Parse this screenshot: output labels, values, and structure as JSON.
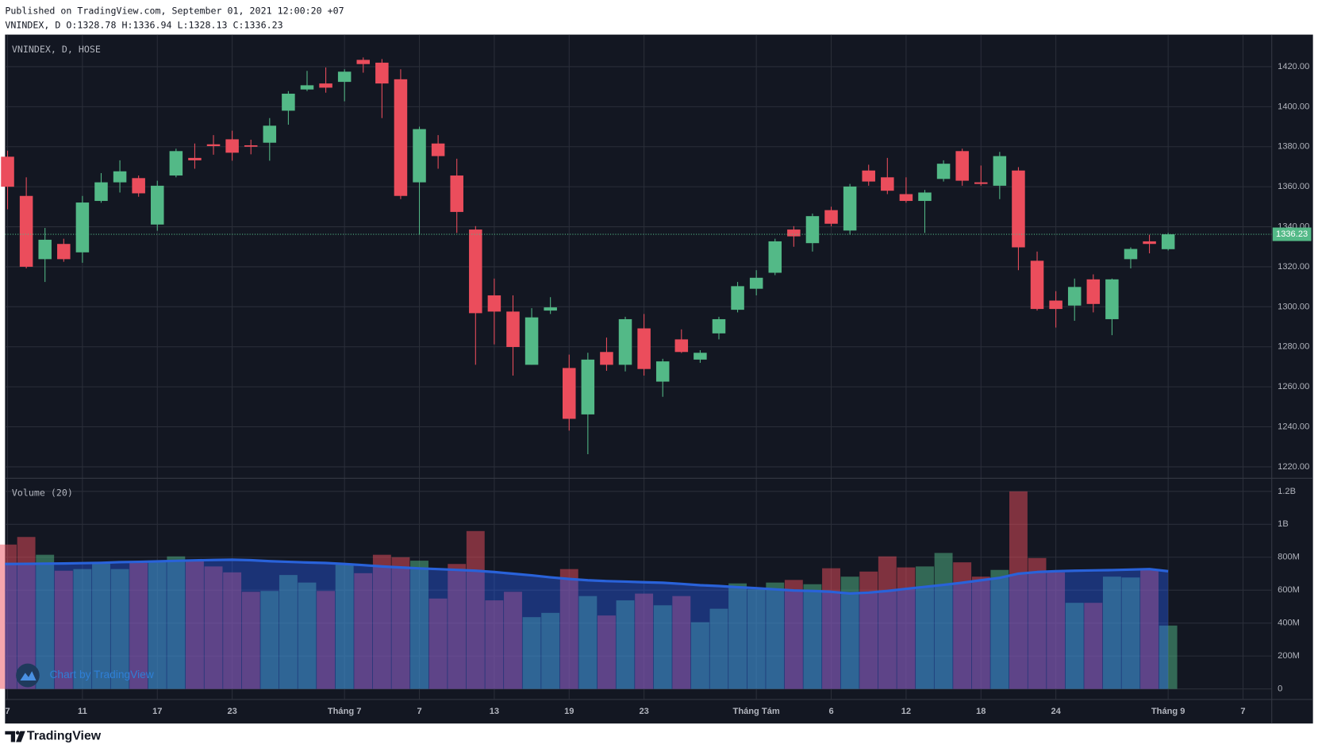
{
  "header": {
    "published": "Published on TradingView.com, September 01, 2021 12:00:20 +07",
    "symbol_line": "VNINDEX, D O:1328.78 H:1336.94 L:1328.13 C:1336.23"
  },
  "watermark": "Chart by TradingView",
  "footer": "TradingView",
  "chart_data": [
    {
      "type": "candlestick",
      "title": "VNINDEX, D, HOSE",
      "up_color": "#53b987",
      "down_color": "#eb4d5c",
      "grid": true,
      "open": [
        1375,
        1355.4,
        1323.8,
        1331.4,
        1327.2,
        1352.9,
        1362.2,
        1364.3,
        1341.1,
        1365.6,
        1374.4,
        1381.2,
        1383.7,
        1380.7,
        1382,
        1398,
        1408.6,
        1411.6,
        1412.4,
        1423.4,
        1422,
        1413.7,
        1362.2,
        1381.6,
        1365.6,
        1338.6,
        1305.7,
        1297.6,
        1271,
        1298.1,
        1269.4,
        1246.2,
        1277.4,
        1271,
        1289.2,
        1262.6,
        1283.7,
        1273.6,
        1286.7,
        1298.5,
        1309,
        1317,
        1338.6,
        1331.8,
        1348.3,
        1338.1,
        1368.1,
        1364.7,
        1356.3,
        1352.9,
        1363.9,
        1377.8,
        1362.2,
        1360.5,
        1368.1,
        1323,
        1303.1,
        1300.6,
        1313.7,
        1293.8,
        1323.8,
        1332.7,
        1328.78,
        null,
        null,
        null,
        null
      ],
      "high": [
        1378,
        1364.7,
        1339.4,
        1334,
        1355.4,
        1366.8,
        1373.2,
        1365.6,
        1363,
        1379,
        1381.6,
        1385.8,
        1388,
        1383.5,
        1394.3,
        1407.8,
        1417.9,
        1419.6,
        1418.7,
        1424.6,
        1423.8,
        1418.7,
        1390,
        1385.8,
        1374,
        1340.3,
        1314.1,
        1305.7,
        1299.3,
        1304.8,
        1276.1,
        1277,
        1284.6,
        1295,
        1296.4,
        1274,
        1288.7,
        1278.3,
        1295,
        1312.4,
        1318.3,
        1334,
        1340.3,
        1346.6,
        1350,
        1361.4,
        1371,
        1374.4,
        1364.7,
        1358.4,
        1373.2,
        1379,
        1370.6,
        1377.4,
        1369.8,
        1327.6,
        1307.8,
        1314.1,
        1316.2,
        1314.1,
        1329.7,
        1336,
        1336.94,
        null,
        null,
        null,
        null
      ],
      "low": [
        1348.7,
        1319.2,
        1312.4,
        1322.5,
        1322,
        1352,
        1357.1,
        1355,
        1338,
        1364.7,
        1369,
        1376,
        1373,
        1376.2,
        1373,
        1391,
        1407.8,
        1407,
        1402.7,
        1417,
        1394.3,
        1353.8,
        1336,
        1369,
        1336.9,
        1271,
        1281.2,
        1265.6,
        1271,
        1296.4,
        1238.1,
        1226.3,
        1268,
        1267.7,
        1265.6,
        1255,
        1276.9,
        1272,
        1283.7,
        1297.2,
        1305.7,
        1315.8,
        1330,
        1327.6,
        1340.2,
        1336,
        1360.5,
        1356.3,
        1352,
        1336.9,
        1362.6,
        1360.5,
        1360.5,
        1353.8,
        1318.3,
        1298.1,
        1289.6,
        1293,
        1297.2,
        1285.8,
        1319.2,
        1326.7,
        1328.13,
        null,
        null,
        null,
        null
      ],
      "close": [
        1360,
        1320,
        1333.5,
        1323.8,
        1352.1,
        1362.2,
        1367.7,
        1356.7,
        1360.5,
        1377.8,
        1373.2,
        1380.3,
        1377,
        1380,
        1390.5,
        1406.5,
        1410.7,
        1409.5,
        1417.5,
        1421.3,
        1411.6,
        1355.4,
        1388.8,
        1375.3,
        1347.4,
        1296.8,
        1297.6,
        1279.9,
        1294.7,
        1299.7,
        1244,
        1273.6,
        1271,
        1293.8,
        1268.9,
        1272.7,
        1277.4,
        1277,
        1293.8,
        1310.3,
        1314.5,
        1332.7,
        1335.2,
        1345.3,
        1341.5,
        1360.1,
        1362.6,
        1358,
        1352.9,
        1357.1,
        1371.5,
        1363,
        1361.4,
        1375.3,
        1329.7,
        1298.9,
        1298.9,
        1309.9,
        1301.4,
        1313.7,
        1328.9,
        1331.4,
        1336.23,
        null,
        null,
        null,
        null
      ],
      "last_price": {
        "value": 1336.23,
        "label": "1336.23"
      },
      "ylim": [
        1214.5,
        1435.6
      ],
      "yticks": [
        {
          "value": 1220,
          "label": "1220.00"
        },
        {
          "value": 1240,
          "label": "1240.00"
        },
        {
          "value": 1260,
          "label": "1260.00"
        },
        {
          "value": 1280,
          "label": "1280.00"
        },
        {
          "value": 1300,
          "label": "1300.00"
        },
        {
          "value": 1320,
          "label": "1320.00"
        },
        {
          "value": 1340,
          "label": "1340.00"
        },
        {
          "value": 1360,
          "label": "1360.00"
        },
        {
          "value": 1380,
          "label": "1380.00"
        },
        {
          "value": 1400,
          "label": "1400.00"
        },
        {
          "value": 1420,
          "label": "1420.00"
        }
      ]
    },
    {
      "type": "bar",
      "title": "Volume (20)",
      "up_color": "rgba(83,185,135,0.5)",
      "down_color": "rgba(235,77,92,0.5)",
      "ma_color": "#2962d9",
      "ma_fill": "rgba(41,98,255,0.38)",
      "grid": true,
      "categories": [
        "7",
        null,
        null,
        null,
        "11",
        null,
        null,
        null,
        "17",
        null,
        null,
        null,
        "23",
        null,
        null,
        null,
        null,
        null,
        "Tháng 7",
        null,
        null,
        null,
        "7",
        null,
        null,
        null,
        "13",
        null,
        null,
        null,
        "19",
        null,
        null,
        null,
        "23",
        null,
        null,
        null,
        null,
        null,
        "Tháng Tám",
        null,
        null,
        null,
        "6",
        null,
        null,
        null,
        "12",
        null,
        null,
        null,
        "18",
        null,
        null,
        null,
        "24",
        null,
        null,
        null,
        null,
        null,
        "Tháng 9",
        null,
        null,
        null,
        "7"
      ],
      "values": [
        877000000,
        923000000,
        815000000,
        718000000,
        728000000,
        769000000,
        728000000,
        769000000,
        779000000,
        805000000,
        779000000,
        744000000,
        708000000,
        590000000,
        595000000,
        692000000,
        646000000,
        595000000,
        754000000,
        703000000,
        815000000,
        800000000,
        779000000,
        549000000,
        759000000,
        959000000,
        538000000,
        590000000,
        436000000,
        462000000,
        728000000,
        564000000,
        446000000,
        538000000,
        579000000,
        508000000,
        564000000,
        405000000,
        487000000,
        641000000,
        605000000,
        646000000,
        662000000,
        636000000,
        733000000,
        682000000,
        713000000,
        805000000,
        738000000,
        744000000,
        826000000,
        769000000,
        682000000,
        723000000,
        1200000000,
        795000000,
        708000000,
        523000000,
        523000000,
        682000000,
        677000000,
        723000000,
        385000000,
        null,
        null,
        null,
        null
      ],
      "moving_average": [
        759000000,
        760000000,
        761000000,
        762000000,
        764000000,
        766000000,
        770000000,
        772000000,
        775000000,
        778000000,
        781000000,
        783000000,
        785000000,
        782000000,
        776000000,
        772000000,
        768000000,
        765000000,
        759000000,
        752000000,
        744000000,
        738000000,
        732000000,
        728000000,
        723000000,
        718000000,
        710000000,
        700000000,
        690000000,
        678000000,
        668000000,
        660000000,
        655000000,
        652000000,
        648000000,
        645000000,
        638000000,
        630000000,
        625000000,
        618000000,
        612000000,
        605000000,
        598000000,
        595000000,
        590000000,
        580000000,
        585000000,
        595000000,
        608000000,
        620000000,
        632000000,
        645000000,
        660000000,
        675000000,
        700000000,
        710000000,
        715000000,
        718000000,
        720000000,
        722000000,
        725000000,
        728000000,
        715000000,
        null,
        null,
        null,
        null
      ],
      "ylim": [
        -61500000,
        1272000000
      ],
      "yticks": [
        0,
        {
          "value": 200000000,
          "label": "200M"
        },
        {
          "value": 400000000,
          "label": "400M"
        },
        {
          "value": 600000000,
          "label": "600M"
        },
        {
          "value": 800000000,
          "label": "800M"
        },
        {
          "value": 1000000000,
          "label": "1B"
        },
        {
          "value": 1200000000,
          "label": "1.2B"
        }
      ]
    }
  ]
}
